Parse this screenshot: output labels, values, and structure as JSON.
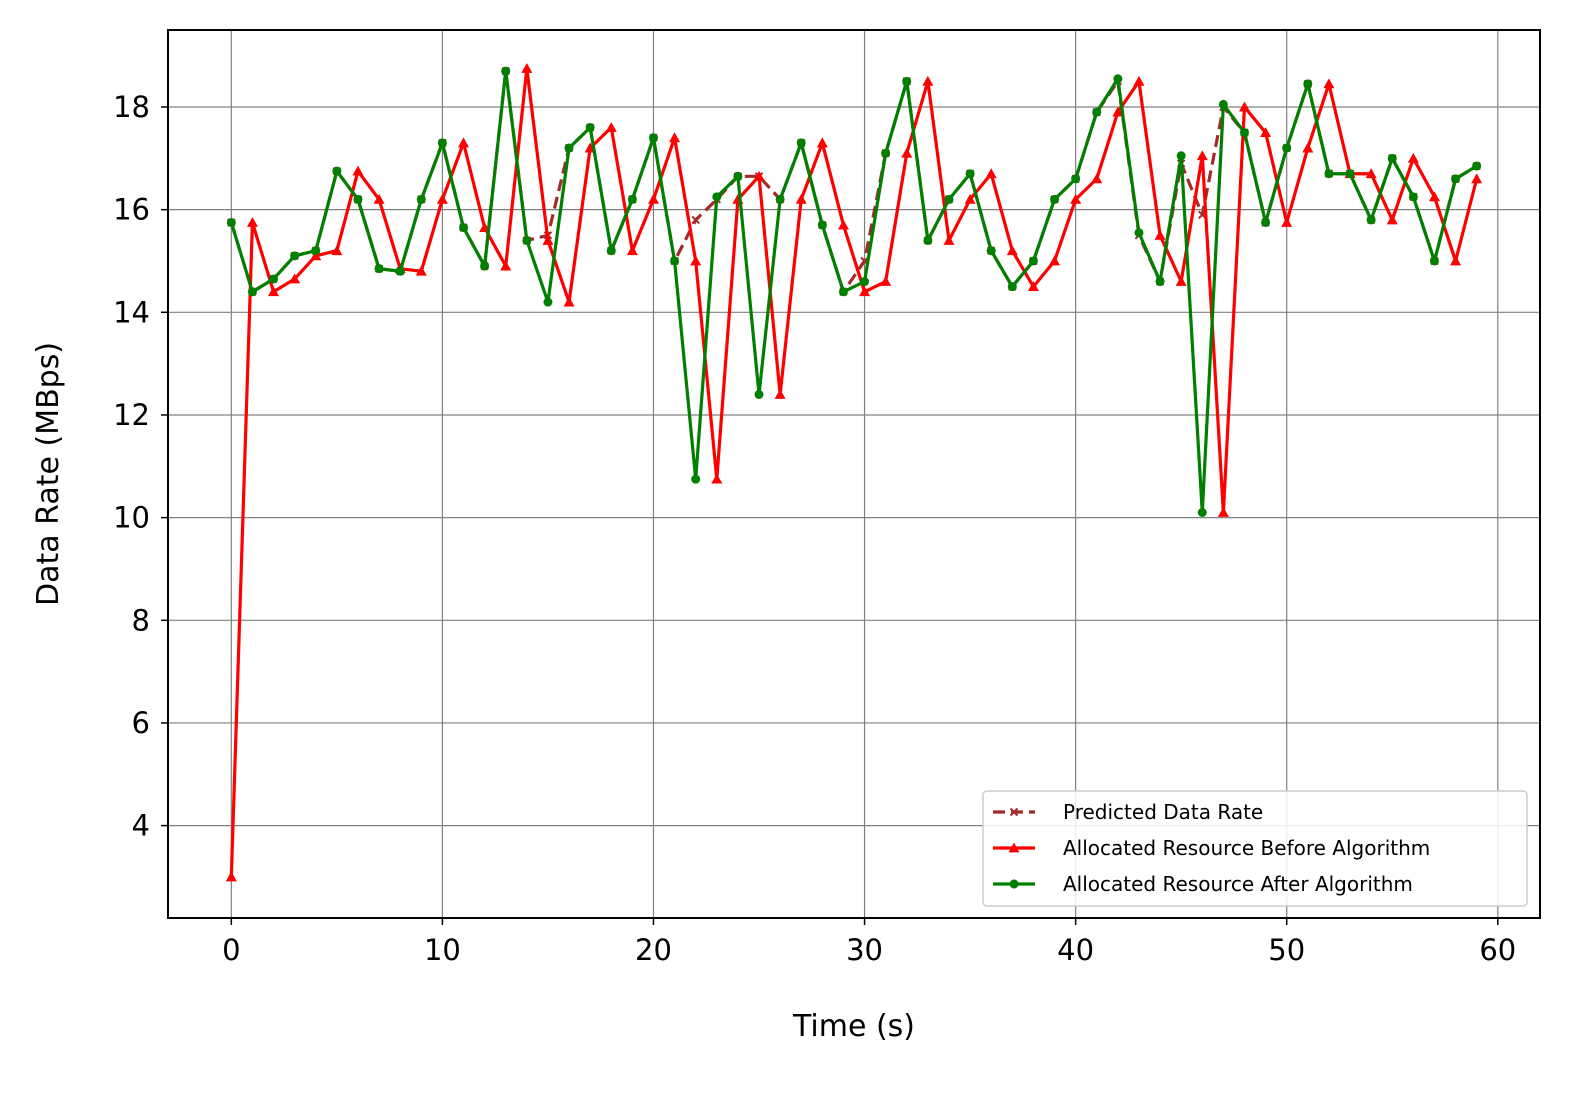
{
  "chart_data": {
    "type": "line",
    "title": "",
    "xlabel": "Time (s)",
    "ylabel": "Data Rate (MBps)",
    "xlim": [
      -3,
      62
    ],
    "ylim": [
      2.2,
      19.5
    ],
    "xticks": [
      0,
      10,
      20,
      30,
      40,
      50,
      60
    ],
    "yticks": [
      4,
      6,
      8,
      10,
      12,
      14,
      16,
      18
    ],
    "grid": true,
    "legend_position": "lower-right",
    "x": [
      0,
      1,
      2,
      3,
      4,
      5,
      6,
      7,
      8,
      9,
      10,
      11,
      12,
      13,
      14,
      15,
      16,
      17,
      18,
      19,
      20,
      21,
      22,
      23,
      24,
      25,
      26,
      27,
      28,
      29,
      30,
      31,
      32,
      33,
      34,
      35,
      36,
      37,
      38,
      39,
      40,
      41,
      42,
      43,
      44,
      45,
      46,
      47,
      48,
      49,
      50,
      51,
      52,
      53,
      54,
      55,
      56,
      57,
      58,
      59
    ],
    "series": [
      {
        "name": "Predicted Data Rate",
        "color": "#a52a2a",
        "style": "dashed",
        "marker": "x",
        "values": [
          15.75,
          14.4,
          14.65,
          15.1,
          15.2,
          16.75,
          16.2,
          14.85,
          14.8,
          16.2,
          17.3,
          15.65,
          14.9,
          18.7,
          15.4,
          15.5,
          17.2,
          17.6,
          15.2,
          16.2,
          17.4,
          15.0,
          15.8,
          16.2,
          16.65,
          16.65,
          16.2,
          17.3,
          15.7,
          14.4,
          15.0,
          17.1,
          18.5,
          15.4,
          16.2,
          16.7,
          15.2,
          14.5,
          15.0,
          16.2,
          16.6,
          17.9,
          18.5,
          15.5,
          14.6,
          16.9,
          15.9,
          18.0,
          17.5,
          15.75,
          17.2,
          18.45,
          16.7,
          16.7,
          15.8,
          17.0,
          16.25,
          15.0,
          16.6,
          16.85
        ]
      },
      {
        "name": "Allocated Resource Before Algorithm",
        "color": "#ff0000",
        "style": "solid",
        "marker": "triangle",
        "values": [
          3.0,
          15.75,
          14.4,
          14.65,
          15.1,
          15.2,
          16.75,
          16.2,
          14.85,
          14.8,
          16.2,
          17.3,
          15.65,
          14.9,
          18.75,
          15.4,
          14.2,
          17.2,
          17.6,
          15.2,
          16.2,
          17.4,
          15.0,
          10.75,
          16.2,
          16.65,
          12.4,
          16.2,
          17.3,
          15.7,
          14.4,
          14.6,
          17.1,
          18.5,
          15.4,
          16.2,
          16.7,
          15.2,
          14.5,
          15.0,
          16.2,
          16.6,
          17.9,
          18.5,
          15.5,
          14.6,
          17.05,
          10.1,
          18.0,
          17.5,
          15.75,
          17.2,
          18.45,
          16.7,
          16.7,
          15.8,
          17.0,
          16.25,
          15.0,
          16.6
        ]
      },
      {
        "name": "Allocated Resource After Algorithm",
        "color": "#008000",
        "style": "solid",
        "marker": "dot",
        "values": [
          15.75,
          14.4,
          14.65,
          15.1,
          15.2,
          16.75,
          16.2,
          14.85,
          14.8,
          16.2,
          17.3,
          15.65,
          14.9,
          18.7,
          15.4,
          14.2,
          17.2,
          17.6,
          15.2,
          16.2,
          17.4,
          15.0,
          10.75,
          16.25,
          16.65,
          12.4,
          16.2,
          17.3,
          15.7,
          14.4,
          14.6,
          17.1,
          18.5,
          15.4,
          16.2,
          16.7,
          15.2,
          14.5,
          15.0,
          16.2,
          16.6,
          17.9,
          18.55,
          15.55,
          14.6,
          17.05,
          10.1,
          18.05,
          17.5,
          15.75,
          17.2,
          18.45,
          16.7,
          16.7,
          15.8,
          17.0,
          16.25,
          15.0,
          16.6,
          16.85
        ]
      }
    ]
  }
}
